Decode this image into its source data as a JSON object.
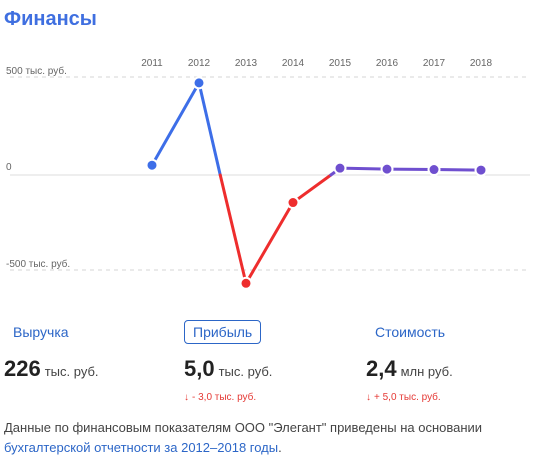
{
  "header": {
    "title": "Финансы"
  },
  "chart_data": {
    "type": "line",
    "x": [
      "2011",
      "2012",
      "2013",
      "2014",
      "2015",
      "2016",
      "2017",
      "2018"
    ],
    "series": [
      {
        "values": [
          50,
          470,
          -570,
          -145,
          35,
          30,
          28,
          25
        ]
      }
    ],
    "y_ticks": [
      "500 тыс. руб.",
      "0",
      "-500 тыс. руб."
    ],
    "ylim": [
      -500,
      500
    ],
    "colors": {
      "up": "#3d6ee8",
      "down": "#ee2d2d",
      "flat": "#6f4fcf",
      "grid": "#d6d6d6",
      "zero": "#dddddd"
    }
  },
  "metrics": [
    {
      "label": "Выручка",
      "value": "226",
      "unit": "тыс. руб.",
      "change": ""
    },
    {
      "label": "Прибыль",
      "value": "5,0",
      "unit": "тыс. руб.",
      "change_arrow": "↓",
      "change": "- 3,0 тыс. руб."
    },
    {
      "label": "Стоимость",
      "value": "2,4",
      "unit": "млн руб.",
      "change_arrow": "↓",
      "change": "+ 5,0 тыс. руб."
    }
  ],
  "note": {
    "text": "Данные по финансовым показателям ООО \"Элегант\" приведены на основании ",
    "link": "бухгалтерской отчетности за 2012–2018 годы",
    "tail": "."
  }
}
